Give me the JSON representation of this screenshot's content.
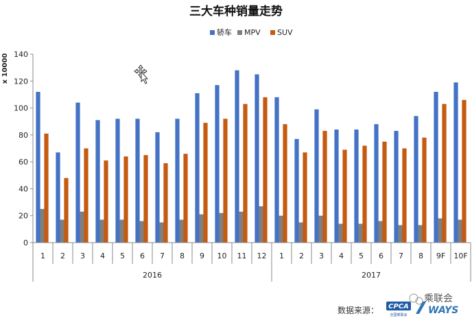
{
  "chart_data": {
    "type": "bar",
    "title": "三大车种销量走势",
    "unit_label": "x 10000",
    "ylim": [
      0,
      140
    ],
    "yticks": [
      0,
      20,
      40,
      60,
      80,
      100,
      120,
      140
    ],
    "grid": false,
    "legend_position": "top",
    "categories": [
      "1",
      "2",
      "3",
      "4",
      "5",
      "6",
      "7",
      "8",
      "9",
      "10",
      "11",
      "12",
      "1",
      "2",
      "3",
      "4",
      "5",
      "6",
      "7",
      "8",
      "9F",
      "10F"
    ],
    "groups": [
      {
        "label": "2016",
        "count": 12
      },
      {
        "label": "2017",
        "count": 10
      }
    ],
    "series": [
      {
        "name": "轿车",
        "color": "#4472C4",
        "values": [
          112,
          67,
          104,
          91,
          92,
          92,
          82,
          92,
          111,
          117,
          128,
          125,
          108,
          77,
          99,
          84,
          84,
          88,
          83,
          94,
          112,
          119
        ]
      },
      {
        "name": "MPV",
        "color": "#7F7F7F",
        "values": [
          25,
          17,
          23,
          17,
          17,
          16,
          15,
          17,
          21,
          22,
          23,
          27,
          20,
          15,
          20,
          14,
          14,
          16,
          13,
          13,
          18,
          17
        ]
      },
      {
        "name": "SUV",
        "color": "#C55A11",
        "values": [
          81,
          48,
          70,
          61,
          64,
          65,
          59,
          66,
          89,
          92,
          103,
          108,
          88,
          67,
          83,
          69,
          72,
          75,
          70,
          78,
          103,
          106
        ]
      }
    ]
  },
  "footer": {
    "source_label": "数据来源：",
    "logo1_text": "CPCA",
    "logo1_sub": "全国乘联会",
    "logo2_text": "WAYS",
    "watermark_text": "乘联会"
  }
}
